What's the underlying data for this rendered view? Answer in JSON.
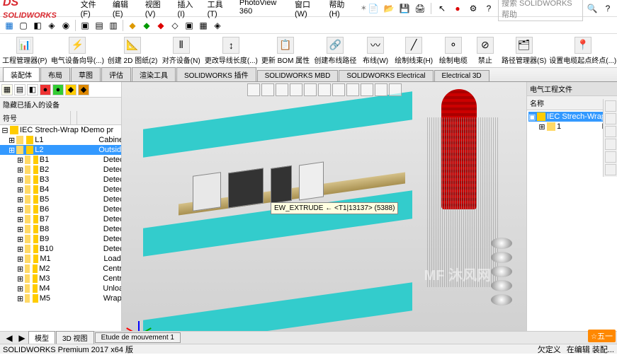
{
  "app": {
    "logo": "SOLIDWORKS"
  },
  "menu": [
    "文件(F)",
    "编辑(E)",
    "视图(V)",
    "插入(I)",
    "工具(T)",
    "PhotoView 360",
    "窗口(W)",
    "帮助(H)"
  ],
  "search": {
    "placeholder": "搜索 SOLIDWORKS 帮助"
  },
  "ribbon": [
    {
      "label": "工程管理器(P)"
    },
    {
      "label": "电气设备向导(...)"
    },
    {
      "label": "创建 2D 图纸(2)"
    },
    {
      "label": "对齐设备(N)"
    },
    {
      "label": "更改导线长度(...)"
    },
    {
      "label": "更新 BOM 属性"
    },
    {
      "label": "创建布线路径"
    },
    {
      "label": "布线(W)"
    },
    {
      "label": "绘制线束(H)"
    },
    {
      "label": "绘制电缆"
    },
    {
      "label": "禁止"
    },
    {
      "label": "路径管理器(S)"
    },
    {
      "label": "设置电缆起点终点(...)"
    }
  ],
  "tabs": [
    "装配体",
    "布局",
    "草图",
    "评估",
    "渲染工具",
    "SOLIDWORKS 插件",
    "SOLIDWORKS MBD",
    "SOLIDWORKS Electrical",
    "Electrical 3D"
  ],
  "left_panel": {
    "header": "隐藏已插入的设备",
    "col1": "符号",
    "root": {
      "label": "IEC Strech-Wrap Machi",
      "val": "Demo pr"
    },
    "rows": [
      {
        "ind": 1,
        "label": "L1",
        "val": "Cabinet"
      },
      {
        "ind": 1,
        "label": "L2",
        "val": "Outside",
        "sel": true
      },
      {
        "ind": 2,
        "label": "B1",
        "val": "Detector"
      },
      {
        "ind": 2,
        "label": "B2",
        "val": "Detector"
      },
      {
        "ind": 2,
        "label": "B3",
        "val": "Detector"
      },
      {
        "ind": 2,
        "label": "B4",
        "val": "Detector"
      },
      {
        "ind": 2,
        "label": "B5",
        "val": "Detector"
      },
      {
        "ind": 2,
        "label": "B6",
        "val": "Detector"
      },
      {
        "ind": 2,
        "label": "B7",
        "val": "Detector"
      },
      {
        "ind": 2,
        "label": "B8",
        "val": "Detector"
      },
      {
        "ind": 2,
        "label": "B9",
        "val": "Detector"
      },
      {
        "ind": 2,
        "label": "B10",
        "val": "Detector"
      },
      {
        "ind": 2,
        "label": "M1",
        "val": "Load co"
      },
      {
        "ind": 2,
        "label": "M2",
        "val": "Central c"
      },
      {
        "ind": 2,
        "label": "M3",
        "val": "Central c"
      },
      {
        "ind": 2,
        "label": "M4",
        "val": "Unload c"
      },
      {
        "ind": 2,
        "label": "M5",
        "val": "Wrapper"
      }
    ]
  },
  "tooltip": "EW_EXTRUDE ← <T1|13137> (5388)",
  "watermark": "MF 沐风网",
  "right_panel": {
    "title": "电气工程文件",
    "col": "名称",
    "root": "IEC Strech-Wrap...",
    "child": "1",
    "childval": "Doc"
  },
  "bottom_tabs": [
    "模型",
    "3D 视图",
    "Etude de mouvement 1"
  ],
  "status": {
    "left": "SOLIDWORKS Premium 2017 x64 版",
    "r1": "欠定义",
    "r2": "在编辑 装配..."
  },
  "wuyi": "五一"
}
